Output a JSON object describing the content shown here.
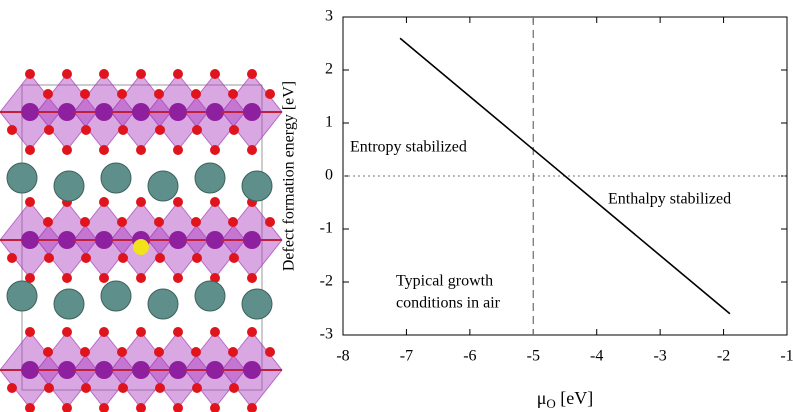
{
  "chart_data": {
    "type": "line",
    "xlabel": [
      "μ",
      "O",
      " [eV]"
    ],
    "ylabel": "Defect formation energy [eV]",
    "x": [
      -7.1,
      -1.9
    ],
    "series": [
      {
        "values": [
          2.6,
          -2.6
        ],
        "color": "#000000"
      }
    ],
    "xlim": [
      -8,
      -1
    ],
    "xticks": [
      -8,
      -7,
      -6,
      -5,
      -4,
      -3,
      -2,
      -1
    ],
    "ylim": [
      -3,
      3
    ],
    "yticks": [
      -3,
      -2,
      -1,
      0,
      1,
      2,
      3
    ],
    "vlines": [
      {
        "x": -5,
        "style": "dashed",
        "color": "#777777"
      }
    ],
    "hlines": [
      {
        "y": 0,
        "style": "dotted",
        "color": "#777777"
      }
    ],
    "annotations": [
      "Entropy stabilized",
      "Enthalpy stabilized",
      "Typical growth",
      "conditions in air"
    ]
  }
}
